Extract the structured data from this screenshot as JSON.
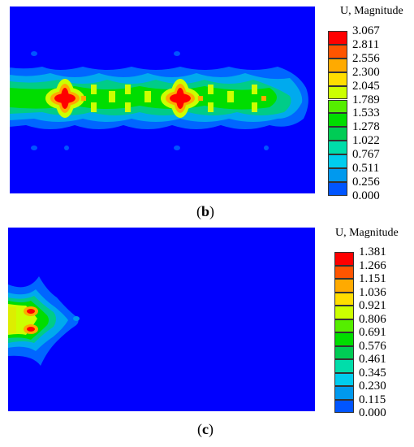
{
  "figure": {
    "panel_b": {
      "caption_open": "(",
      "caption_letter": "b",
      "caption_close": ")",
      "legend": {
        "title": "U, Magnitude",
        "values": [
          "3.067",
          "2.811",
          "2.556",
          "2.300",
          "2.045",
          "1.789",
          "1.533",
          "1.278",
          "1.022",
          "0.767",
          "0.511",
          "0.256",
          "0.000"
        ],
        "colors": [
          "#ff0000",
          "#ff5500",
          "#ffaa00",
          "#ffdd00",
          "#ccff00",
          "#55ee00",
          "#00dd00",
          "#00cc55",
          "#00ddaa",
          "#00ccee",
          "#0099ee",
          "#0055ff",
          "#0000ff"
        ]
      }
    },
    "panel_c": {
      "caption_open": "(",
      "caption_letter": "c",
      "caption_close": ")",
      "legend": {
        "title": "U, Magnitude",
        "values": [
          "1.381",
          "1.266",
          "1.151",
          "1.036",
          "0.921",
          "0.806",
          "0.691",
          "0.576",
          "0.461",
          "0.345",
          "0.230",
          "0.115",
          "0.000"
        ],
        "colors": [
          "#ff0000",
          "#ff5500",
          "#ffaa00",
          "#ffdd00",
          "#ccff00",
          "#55ee00",
          "#00dd00",
          "#00cc55",
          "#00ddaa",
          "#00ccee",
          "#0099ee",
          "#0055ff",
          "#0000ff"
        ]
      }
    }
  }
}
